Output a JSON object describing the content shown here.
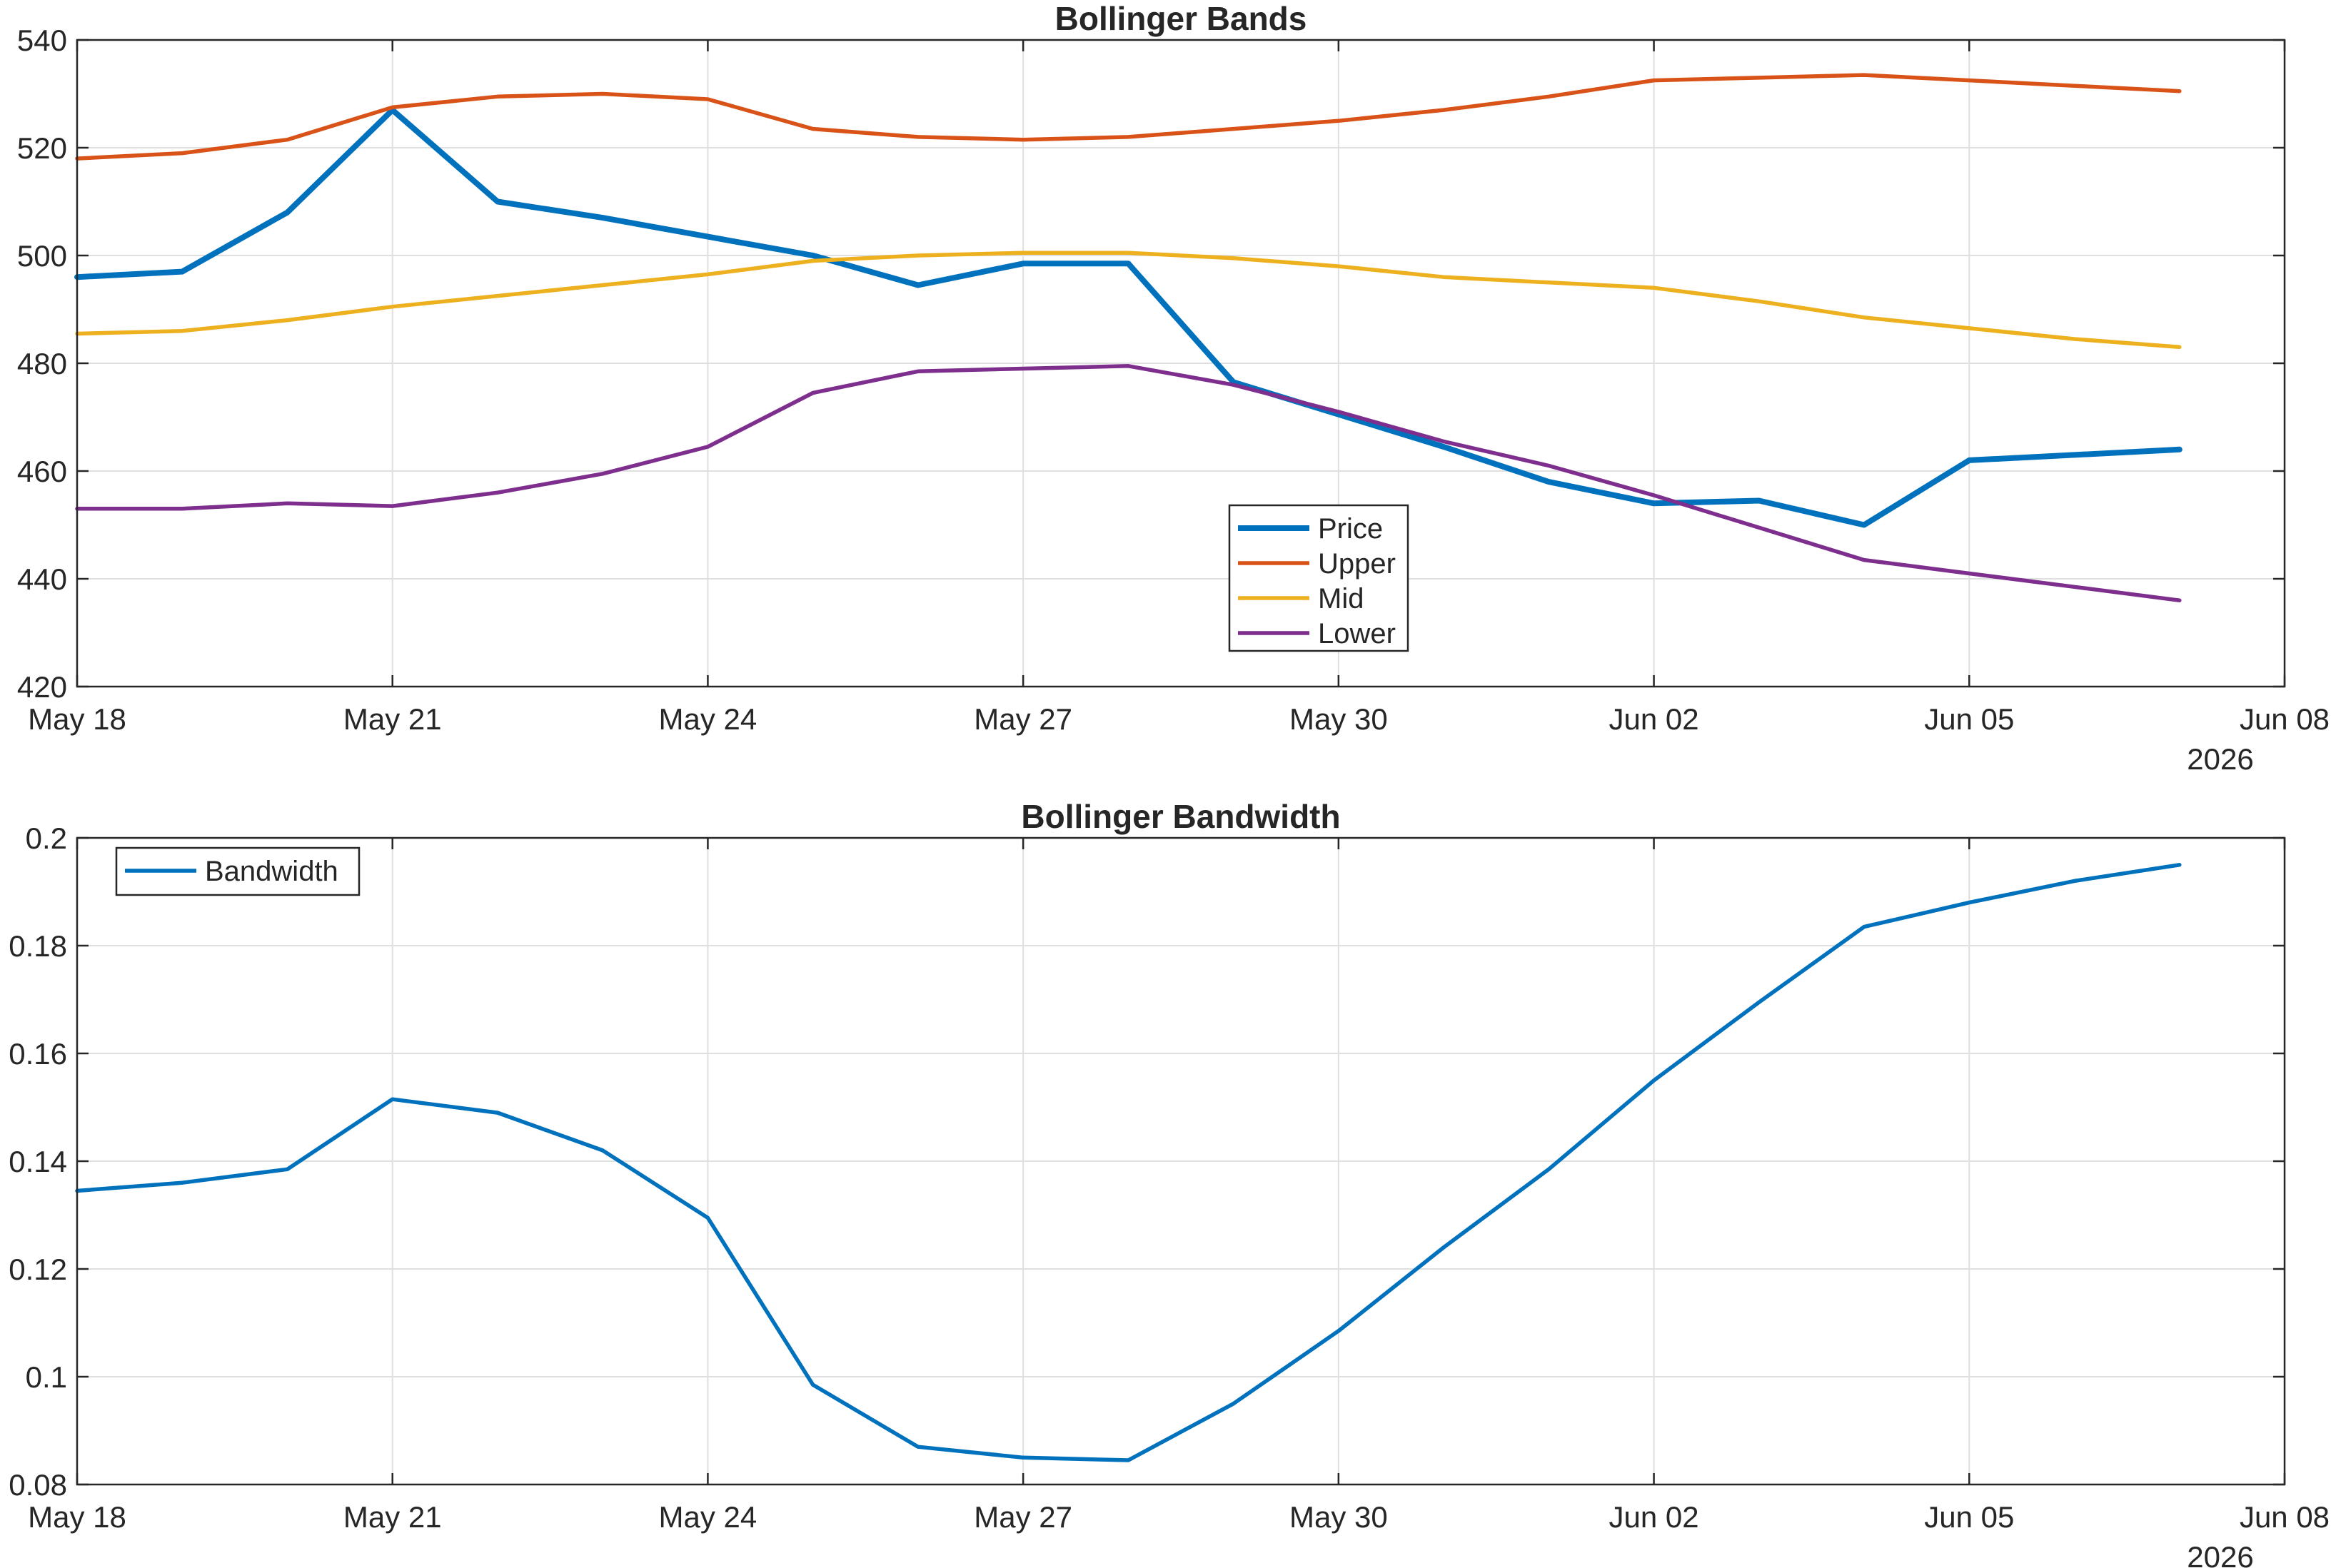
{
  "chart_data": [
    {
      "type": "line",
      "title": "Bollinger Bands",
      "xlabel": "",
      "ylabel": "",
      "xlim": [
        "2026-05-18",
        "2026-06-08"
      ],
      "ylim": [
        420,
        540
      ],
      "x_ticks": [
        "May 18",
        "May 21",
        "May 24",
        "May 27",
        "May 30",
        "Jun 02",
        "Jun 05",
        "Jun 08"
      ],
      "x_year_label": "2026",
      "y_ticks": [
        "420",
        "440",
        "460",
        "480",
        "500",
        "520",
        "540"
      ],
      "grid": true,
      "legend_position": "bottom-center",
      "x": [
        "2026-05-18",
        "2026-05-19",
        "2026-05-20",
        "2026-05-21",
        "2026-05-22",
        "2026-05-23",
        "2026-05-24",
        "2026-05-25",
        "2026-05-26",
        "2026-05-27",
        "2026-05-28",
        "2026-05-29",
        "2026-05-30",
        "2026-05-31",
        "2026-06-01",
        "2026-06-02",
        "2026-06-03",
        "2026-06-04",
        "2026-06-05",
        "2026-06-06",
        "2026-06-07"
      ],
      "series": [
        {
          "name": "Price",
          "color": "#0072BD",
          "values": [
            496,
            497,
            508,
            527,
            510,
            507,
            503.5,
            500,
            494.5,
            498.5,
            498.5,
            476.5,
            470.5,
            464.5,
            458,
            454,
            454.5,
            450,
            462,
            463,
            464
          ]
        },
        {
          "name": "Upper",
          "color": "#D95319",
          "values": [
            518,
            519,
            521.5,
            527.5,
            529.5,
            530,
            529,
            523.5,
            522,
            521.5,
            522,
            523.5,
            525,
            527,
            529.5,
            532.5,
            533,
            533.5,
            532.5,
            531.5,
            530.5
          ]
        },
        {
          "name": "Mid",
          "color": "#EDB120",
          "values": [
            485.5,
            486,
            488,
            490.5,
            492.5,
            494.5,
            496.5,
            499,
            500,
            500.5,
            500.5,
            499.5,
            498,
            496,
            495,
            494,
            491.5,
            488.5,
            486.5,
            484.5,
            483
          ]
        },
        {
          "name": "Lower",
          "color": "#7E2F8E",
          "values": [
            453,
            453,
            454,
            453.5,
            456,
            459.5,
            464.5,
            474.5,
            478.5,
            479,
            479.5,
            476,
            471,
            465.5,
            461,
            455.5,
            449.5,
            443.5,
            441,
            438.5,
            436
          ]
        }
      ]
    },
    {
      "type": "line",
      "title": "Bollinger Bandwidth",
      "xlabel": "",
      "ylabel": "",
      "xlim": [
        "2026-05-18",
        "2026-06-08"
      ],
      "ylim": [
        0.08,
        0.2
      ],
      "x_ticks": [
        "May 18",
        "May 21",
        "May 24",
        "May 27",
        "May 30",
        "Jun 02",
        "Jun 05",
        "Jun 08"
      ],
      "x_year_label": "2026",
      "y_ticks": [
        "0.08",
        "0.1",
        "0.12",
        "0.14",
        "0.16",
        "0.18",
        "0.2"
      ],
      "grid": true,
      "legend_position": "top-left",
      "x": [
        "2026-05-18",
        "2026-05-19",
        "2026-05-20",
        "2026-05-21",
        "2026-05-22",
        "2026-05-23",
        "2026-05-24",
        "2026-05-25",
        "2026-05-26",
        "2026-05-27",
        "2026-05-28",
        "2026-05-29",
        "2026-05-30",
        "2026-05-31",
        "2026-06-01",
        "2026-06-02",
        "2026-06-03",
        "2026-06-04",
        "2026-06-05",
        "2026-06-06",
        "2026-06-07"
      ],
      "series": [
        {
          "name": "Bandwidth",
          "color": "#0072BD",
          "values": [
            0.1345,
            0.136,
            0.1385,
            0.1515,
            0.149,
            0.142,
            0.1295,
            0.0985,
            0.087,
            0.085,
            0.0845,
            0.095,
            0.1085,
            0.124,
            0.1385,
            0.155,
            0.1695,
            0.1835,
            0.188,
            0.192,
            0.195
          ]
        }
      ]
    }
  ]
}
